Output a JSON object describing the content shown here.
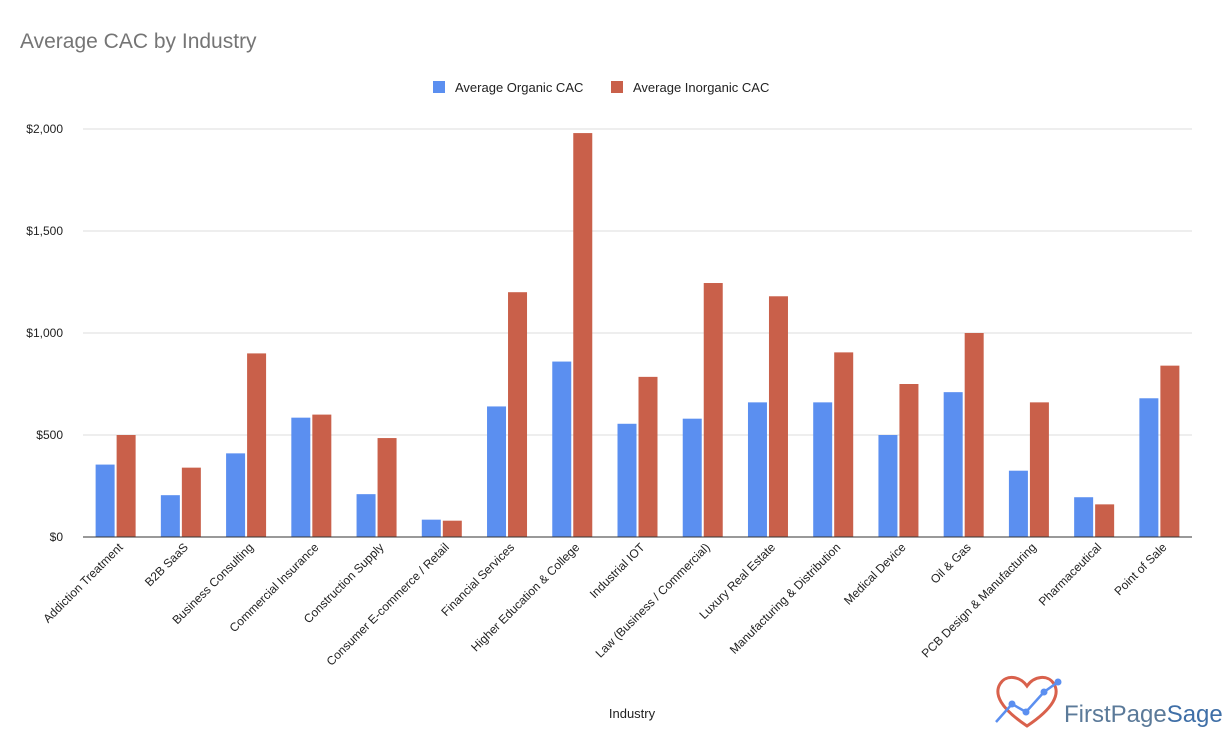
{
  "chart_data": {
    "type": "bar",
    "title": "Average CAC by Industry",
    "xlabel": "Industry",
    "ylabel": "",
    "ylim": [
      0,
      2000
    ],
    "yticks": [
      0,
      500,
      1000,
      1500,
      2000
    ],
    "ytick_labels": [
      "$0",
      "$500",
      "$1,000",
      "$1,500",
      "$2,000"
    ],
    "grid": true,
    "legend_position": "top",
    "categories": [
      "Addiction Treatment",
      "B2B SaaS",
      "Business Consulting",
      "Commercial Insurance",
      "Construction Supply",
      "Consumer E-commerce / Retail",
      "Financial Services",
      "Higher Education & College",
      "Industrial IOT",
      "Law (Business / Commercial)",
      "Luxury Real Estate",
      "Manufacturing & Distribution",
      "Medical Device",
      "Oil & Gas",
      "PCB Design & Manufacturing",
      "Pharmaceutical",
      "Point of Sale"
    ],
    "series": [
      {
        "name": "Average Organic CAC",
        "color": "#5b8ff0",
        "values": [
          355,
          205,
          410,
          585,
          210,
          85,
          640,
          860,
          555,
          580,
          660,
          660,
          500,
          710,
          325,
          195,
          680
        ]
      },
      {
        "name": "Average Inorganic CAC",
        "color": "#c9604a",
        "values": [
          500,
          340,
          900,
          600,
          485,
          80,
          1200,
          1980,
          785,
          1245,
          1180,
          905,
          750,
          1000,
          660,
          160,
          840
        ]
      }
    ]
  },
  "brand": {
    "name_part1": "FirstPage",
    "name_part2": "Sage",
    "color_part1": "#5b7a99",
    "color_part2": "#3f6fa7",
    "logo_icon": "heart-chart-icon"
  }
}
